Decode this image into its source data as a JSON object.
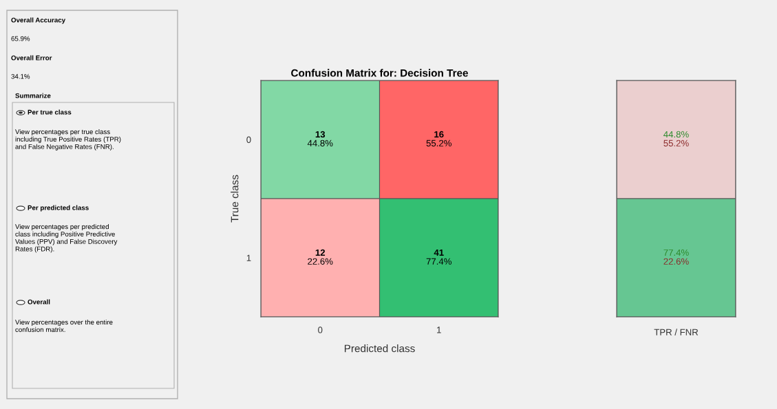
{
  "chart_data": [
    {
      "type": "other",
      "annotations": [
        "Overall Accuracy",
        "65.9%",
        "Overall Error",
        "34.1%",
        "Summarize",
        "Per true class",
        "View percentages per true class\nincluding True Positive Rates (TPR)\nand False Negative Rates (FNR).",
        "Per predicted class",
        "View percentages per predicted\nclass including Positive Predictive\nValues (PPV) and False Discovery\nRates (FDR).",
        "Overall",
        "View percentages over the entire\nconfusion matrix."
      ]
    },
    {
      "type": "heatmap",
      "title": "Confusion Matrix for: Decision Tree",
      "xlabel": "Predicted class",
      "ylabel": "True class",
      "categories": [
        "0",
        "1"
      ],
      "y_categories": [
        "0",
        "1"
      ],
      "cells": [
        [
          13,
          16
        ],
        [
          12,
          41
        ]
      ],
      "annotations": [
        "44.8%",
        "55.2%",
        "22.6%",
        "77.4%"
      ],
      "data_labels": true,
      "colors": [
        "#82d8a5",
        "#ff6666",
        "#ffb0b0",
        "#33bf72"
      ]
    },
    {
      "type": "other",
      "annotations": [
        "44.8%\n55.2%",
        "77.4%\n22.6%",
        "TPR / FNR"
      ],
      "colors": [
        "#ebcfcf",
        "#66c692"
      ]
    }
  ]
}
